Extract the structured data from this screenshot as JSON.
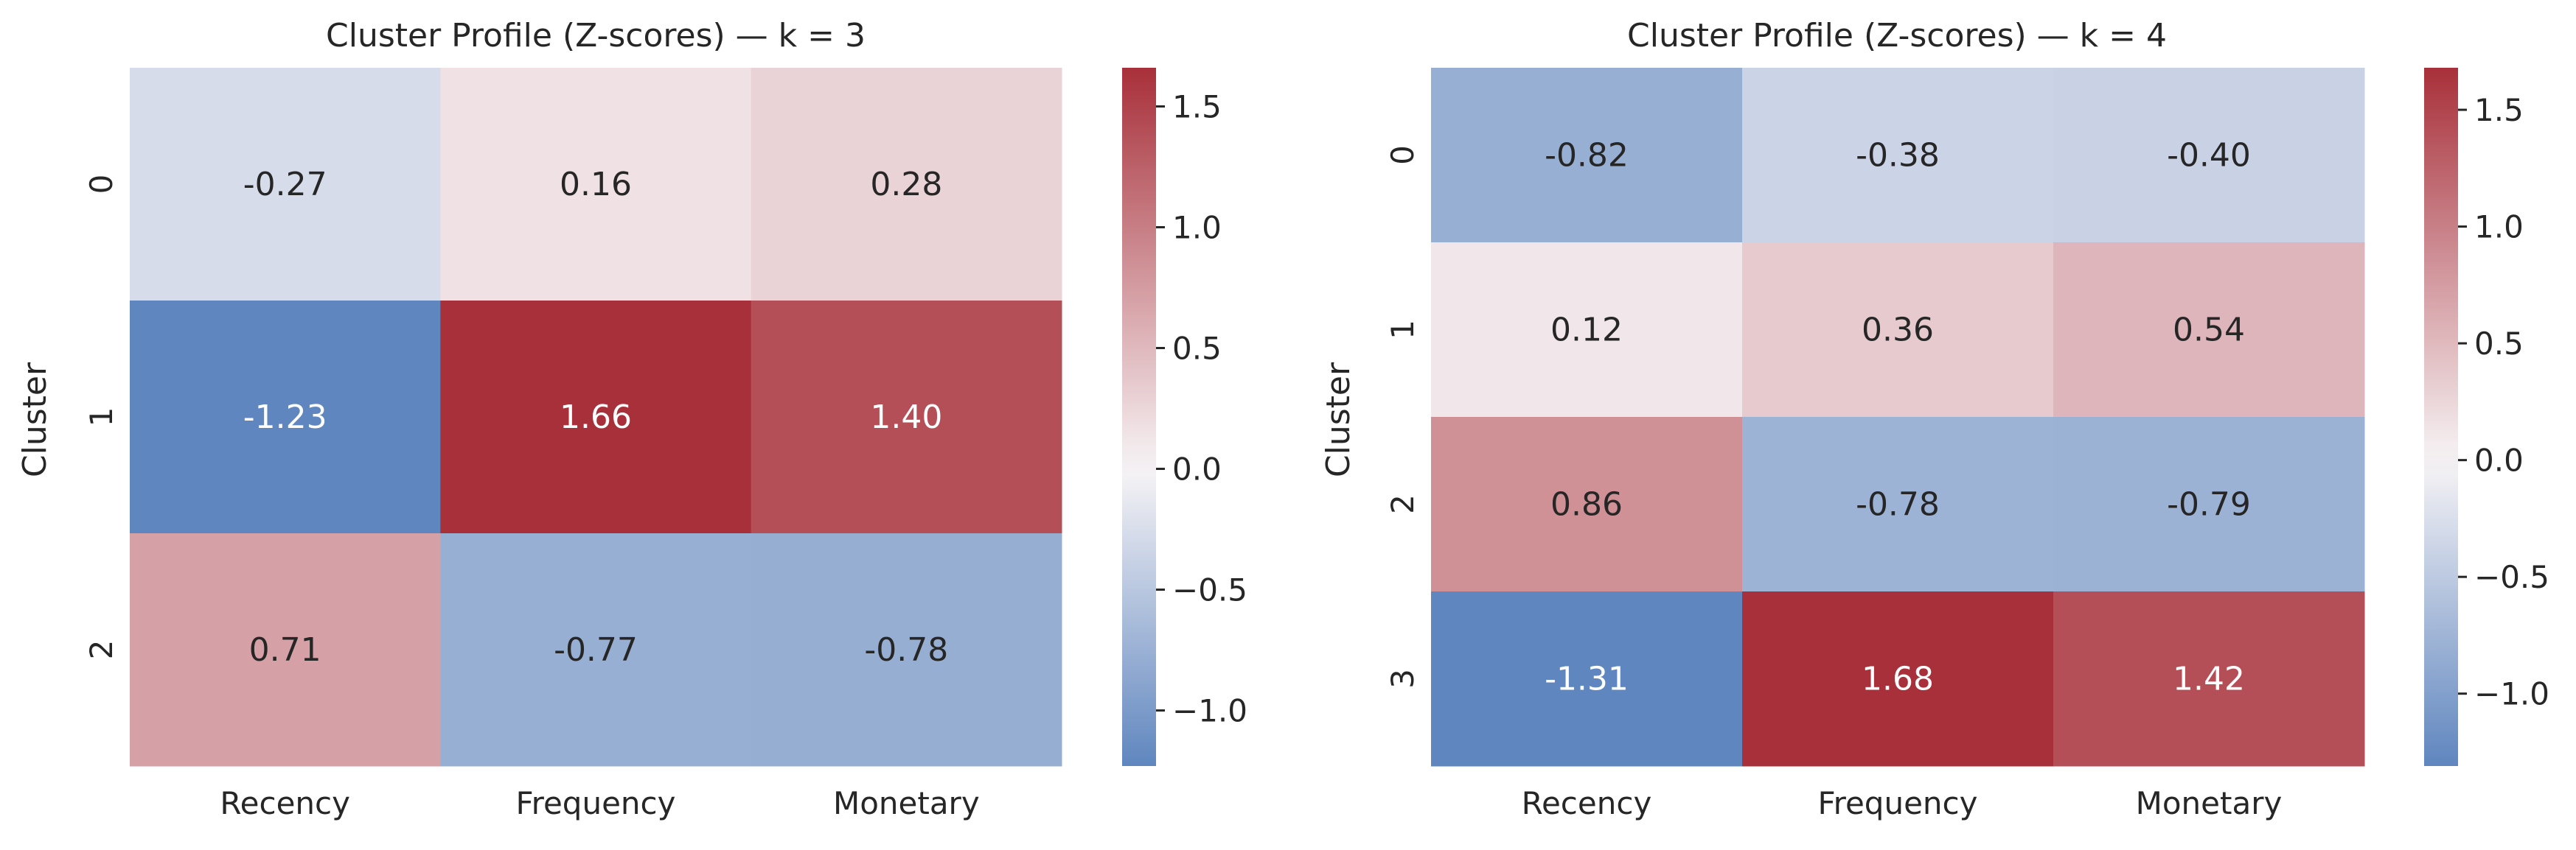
{
  "chart_data": [
    {
      "type": "heatmap",
      "title": "Cluster Profile (Z-scores) — k = 3",
      "xlabel": "",
      "ylabel": "Cluster",
      "x_categories": [
        "Recency",
        "Frequency",
        "Monetary"
      ],
      "y_categories": [
        "0",
        "1",
        "2"
      ],
      "values": [
        [
          -0.27,
          0.16,
          0.28
        ],
        [
          -1.23,
          1.66,
          1.4
        ],
        [
          0.71,
          -0.77,
          -0.78
        ]
      ],
      "labels": [
        [
          "-0.27",
          "0.16",
          "0.28"
        ],
        [
          "-1.23",
          "1.66",
          "1.40"
        ],
        [
          "0.71",
          "-0.77",
          "-0.78"
        ]
      ],
      "colorbar": {
        "vmin": -1.23,
        "vmax": 1.66,
        "center": 0,
        "ticks": [
          "1.5",
          "1.0",
          "0.5",
          "0.0",
          "−0.5",
          "−1.0"
        ],
        "tick_values": [
          1.5,
          1.0,
          0.5,
          0.0,
          -0.5,
          -1.0
        ]
      },
      "colormap": {
        "low": "#5f86bf",
        "mid": "#f7f4f6",
        "high": "#a8303a"
      }
    },
    {
      "type": "heatmap",
      "title": "Cluster Profile (Z-scores) — k = 4",
      "xlabel": "",
      "ylabel": "Cluster",
      "x_categories": [
        "Recency",
        "Frequency",
        "Monetary"
      ],
      "y_categories": [
        "0",
        "1",
        "2",
        "3"
      ],
      "values": [
        [
          -0.82,
          -0.38,
          -0.4
        ],
        [
          0.12,
          0.36,
          0.54
        ],
        [
          0.86,
          -0.78,
          -0.79
        ],
        [
          -1.31,
          1.68,
          1.42
        ]
      ],
      "labels": [
        [
          "-0.82",
          "-0.38",
          "-0.40"
        ],
        [
          "0.12",
          "0.36",
          "0.54"
        ],
        [
          "0.86",
          "-0.78",
          "-0.79"
        ],
        [
          "-1.31",
          "1.68",
          "1.42"
        ]
      ],
      "colorbar": {
        "vmin": -1.31,
        "vmax": 1.68,
        "center": 0,
        "ticks": [
          "1.5",
          "1.0",
          "0.5",
          "0.0",
          "−0.5",
          "−1.0"
        ],
        "tick_values": [
          1.5,
          1.0,
          0.5,
          0.0,
          -0.5,
          -1.0
        ]
      },
      "colormap": {
        "low": "#5f86bf",
        "mid": "#f7f4f6",
        "high": "#a8303a"
      }
    }
  ]
}
